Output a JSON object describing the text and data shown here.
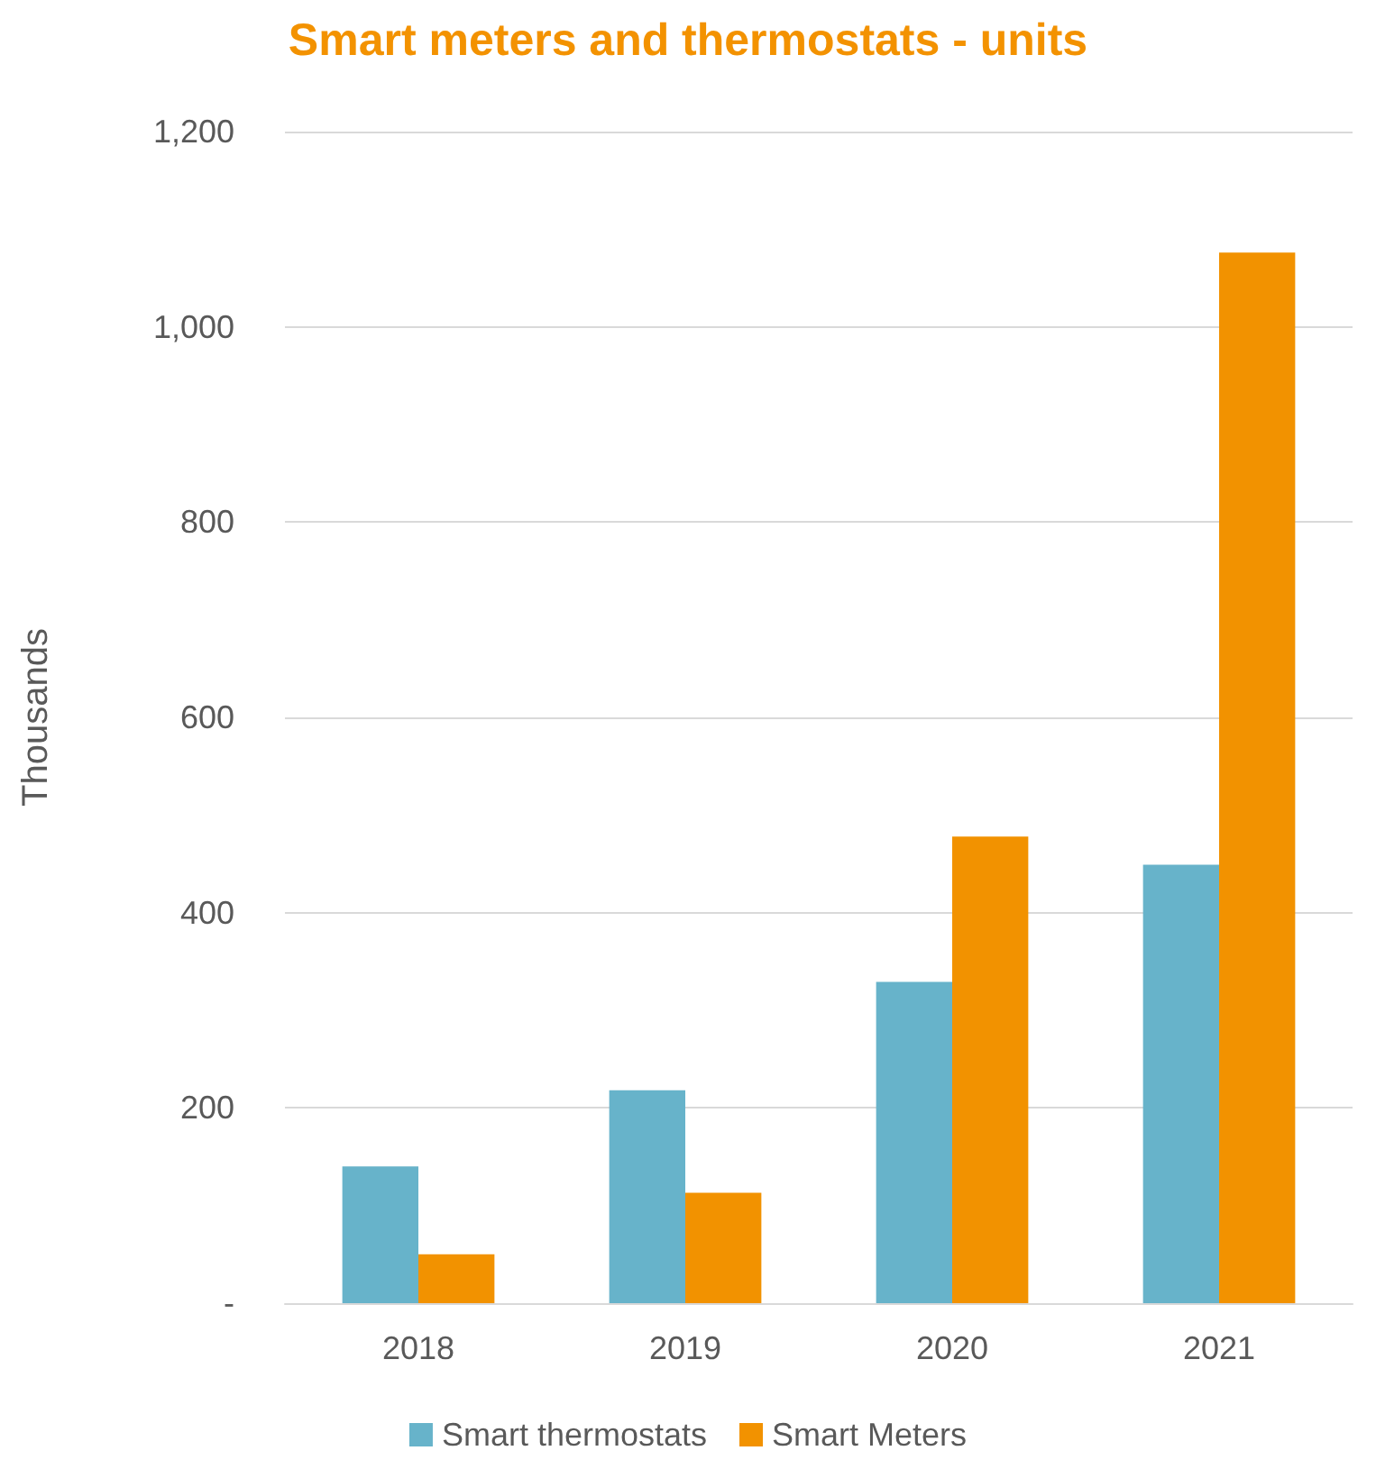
{
  "chart_data": {
    "type": "bar",
    "title": "Smart meters and thermostats - units",
    "ylabel": "Thousands",
    "categories": [
      "2018",
      "2019",
      "2020",
      "2021"
    ],
    "series": [
      {
        "name": "Smart thermostats",
        "color": "#67b3ca",
        "values": [
          140,
          218,
          329,
          449
        ]
      },
      {
        "name": "Smart Meters",
        "color": "#f29200",
        "values": [
          50,
          113,
          478,
          1076
        ]
      }
    ],
    "ylim": [
      0,
      1200
    ],
    "yticks": [
      {
        "value": 0,
        "label": "-"
      },
      200,
      400,
      600,
      800,
      {
        "value": 1000,
        "label": "1,000"
      },
      {
        "value": 1200,
        "label": "1,200"
      }
    ],
    "grid": "y",
    "legend": "bottom"
  }
}
